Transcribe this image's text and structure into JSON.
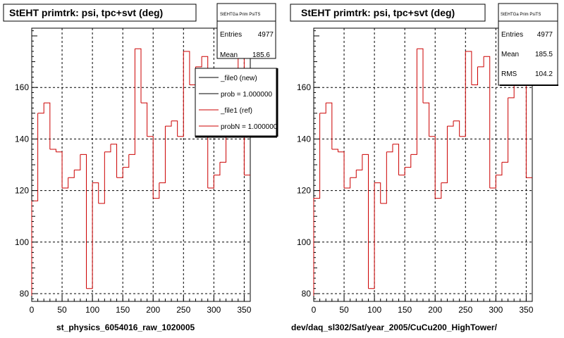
{
  "colors": {
    "histogram": "#cc0000",
    "reference_line": "#000000",
    "background": "#ffffff",
    "grid": "#000000"
  },
  "panels": [
    {
      "title": "StEHT primtrk: psi, tpc+svt (deg)",
      "stats": {
        "header": "StEHTGa Prim PsiTS",
        "entries_label": "Entries",
        "entries_value": "4977",
        "mean_label": "Mean",
        "mean_value": "185.6"
      },
      "legend": [
        {
          "label": "_file0 (new)",
          "color": "#000000"
        },
        {
          "label": "prob = 1.000000",
          "color": "#000000"
        },
        {
          "label": "_file1 (ref)",
          "color": "#cc0000"
        },
        {
          "label": "probN = 1.000000",
          "color": "#cc0000"
        }
      ],
      "caption": "st_physics_6054016_raw_1020005"
    },
    {
      "title": "StEHT primtrk: psi, tpc+svt (deg)",
      "stats": {
        "header": "StEHTGa Prim PsiTS",
        "entries_label": "Entries",
        "entries_value": "4977",
        "mean_label": "Mean",
        "mean_value": "185.5",
        "rms_label": "RMS",
        "rms_value": "104.2"
      },
      "caption": "dev/daq_sl302/Sat/year_2005/CuCu200_HighTower/"
    }
  ],
  "chart_data": [
    {
      "type": "histogram",
      "title": "StEHT primtrk: psi, tpc+svt (deg)",
      "xlabel": "",
      "ylabel": "",
      "xlim": [
        0,
        360
      ],
      "ylim": [
        77,
        183
      ],
      "xticks": [
        0,
        50,
        100,
        150,
        200,
        250,
        300,
        350
      ],
      "yticks": [
        80,
        100,
        120,
        140,
        160
      ],
      "grid": true,
      "legend_position": "top-right",
      "bin_width": 10,
      "x_start": 0,
      "values": [
        116,
        150,
        154,
        136,
        135,
        121,
        125,
        128,
        134,
        82,
        123,
        115,
        135,
        138,
        125,
        129,
        134,
        175,
        154,
        141,
        117,
        123,
        145,
        147,
        141,
        174,
        161,
        168,
        172,
        121,
        126,
        131,
        144,
        164,
        172,
        126
      ]
    },
    {
      "type": "histogram",
      "title": "StEHT primtrk: psi, tpc+svt (deg)",
      "xlabel": "",
      "ylabel": "",
      "xlim": [
        0,
        360
      ],
      "ylim": [
        77,
        183
      ],
      "xticks": [
        0,
        50,
        100,
        150,
        200,
        250,
        300,
        350
      ],
      "yticks": [
        80,
        100,
        120,
        140,
        160
      ],
      "grid": true,
      "bin_width": 10,
      "x_start": 0,
      "values": [
        117,
        150,
        154,
        136,
        135,
        121,
        125,
        128,
        134,
        82,
        123,
        115,
        135,
        138,
        126,
        129,
        134,
        175,
        154,
        141,
        117,
        123,
        145,
        147,
        141,
        174,
        161,
        168,
        172,
        121,
        126,
        131,
        156,
        164,
        164,
        125
      ]
    }
  ]
}
